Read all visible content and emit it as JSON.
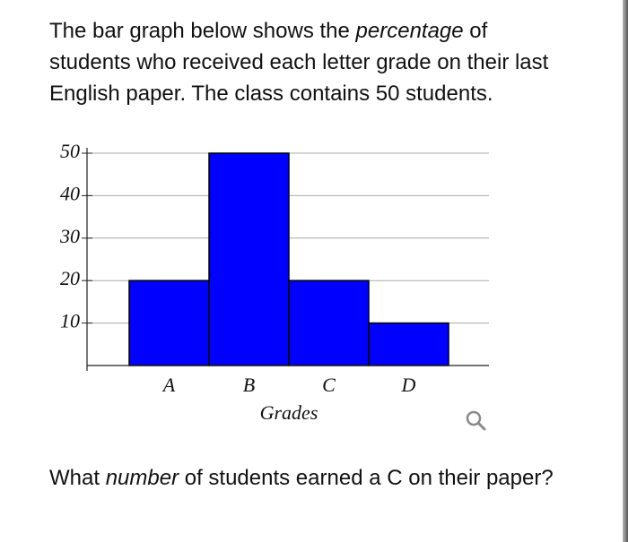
{
  "intro": [
    "The bar graph below shows the ",
    "percentage",
    " of students who received each letter grade on their last English paper. The class contains 50 students."
  ],
  "chart_data": {
    "type": "bar",
    "categories": [
      "A",
      "B",
      "C",
      "D"
    ],
    "values": [
      20,
      50,
      20,
      10
    ],
    "color": "#0000ff",
    "xlabel": "Grades",
    "ylim": [
      0,
      50
    ],
    "yticks": [
      10,
      20,
      30,
      40,
      50
    ],
    "grid": true
  },
  "question": [
    "What ",
    "number",
    " of students earned a C on their paper?"
  ]
}
